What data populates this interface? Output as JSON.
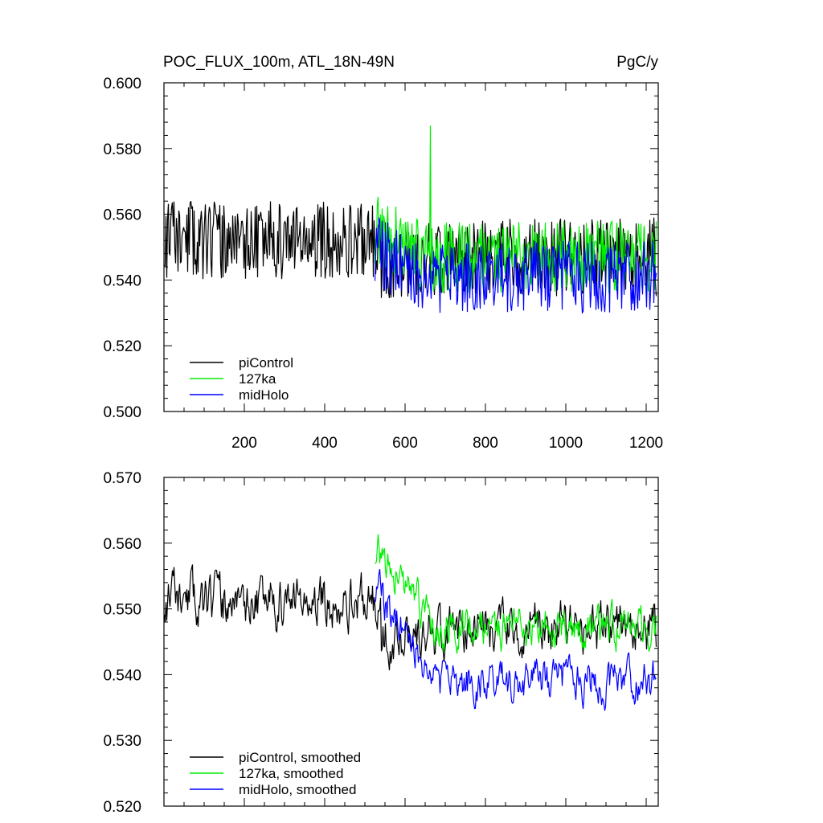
{
  "chart_data": [
    {
      "type": "line",
      "id": "raw",
      "title": "POC_FLUX_100m, ATL_18N-49N",
      "units": "PgC/y",
      "xlabel": "",
      "ylabel": "",
      "xlim": [
        0,
        1230
      ],
      "ylim": [
        0.5,
        0.6
      ],
      "xticks": [
        200,
        400,
        600,
        800,
        1000,
        1200
      ],
      "yticks": [
        0.5,
        0.52,
        0.54,
        0.56,
        0.58,
        0.6
      ],
      "ytick_labels": [
        "0.500",
        "0.520",
        "0.540",
        "0.560",
        "0.580",
        "0.600"
      ],
      "legend_position": "bottom-left",
      "series": [
        {
          "name": "piControl",
          "color": "#000000",
          "x_start": 1,
          "x_end": 1225,
          "mean": 0.55,
          "amplitude": 0.012,
          "seed": 11,
          "note": "mean drifts from ~0.552 to ~0.545 after x=550"
        },
        {
          "name": "127ka",
          "color": "#00ee00",
          "x_start": 525,
          "x_end": 1225,
          "mean": 0.547,
          "amplitude": 0.011,
          "seed": 23,
          "peak": [
            663,
            0.587
          ]
        },
        {
          "name": "midHolo",
          "color": "#0000ff",
          "x_start": 525,
          "x_end": 1225,
          "mean": 0.541,
          "amplitude": 0.011,
          "seed": 37
        }
      ]
    },
    {
      "type": "line",
      "id": "smoothed",
      "title": "",
      "xlabel": "",
      "ylabel": "",
      "xlim": [
        0,
        1230
      ],
      "ylim": [
        0.52,
        0.57
      ],
      "xticks": [
        200,
        400,
        600,
        800,
        1000,
        1200
      ],
      "yticks": [
        0.52,
        0.53,
        0.54,
        0.55,
        0.56,
        0.57
      ],
      "ytick_labels": [
        "0.520",
        "0.530",
        "0.540",
        "0.550",
        "0.560",
        "0.570"
      ],
      "legend_position": "bottom-left",
      "series": [
        {
          "name": "piControl, smoothed",
          "color": "#000000",
          "x_start": 1,
          "x_end": 1225,
          "mean": 0.549,
          "amplitude": 0.005,
          "seed": 11
        },
        {
          "name": "127ka, smoothed",
          "color": "#00ee00",
          "x_start": 525,
          "x_end": 1225,
          "mean": 0.547,
          "amplitude": 0.004,
          "seed": 23,
          "early_mean": 0.559
        },
        {
          "name": "midHolo, smoothed",
          "color": "#0000ff",
          "x_start": 525,
          "x_end": 1225,
          "mean": 0.539,
          "amplitude": 0.004,
          "seed": 37,
          "early_mean": 0.553
        }
      ]
    }
  ]
}
